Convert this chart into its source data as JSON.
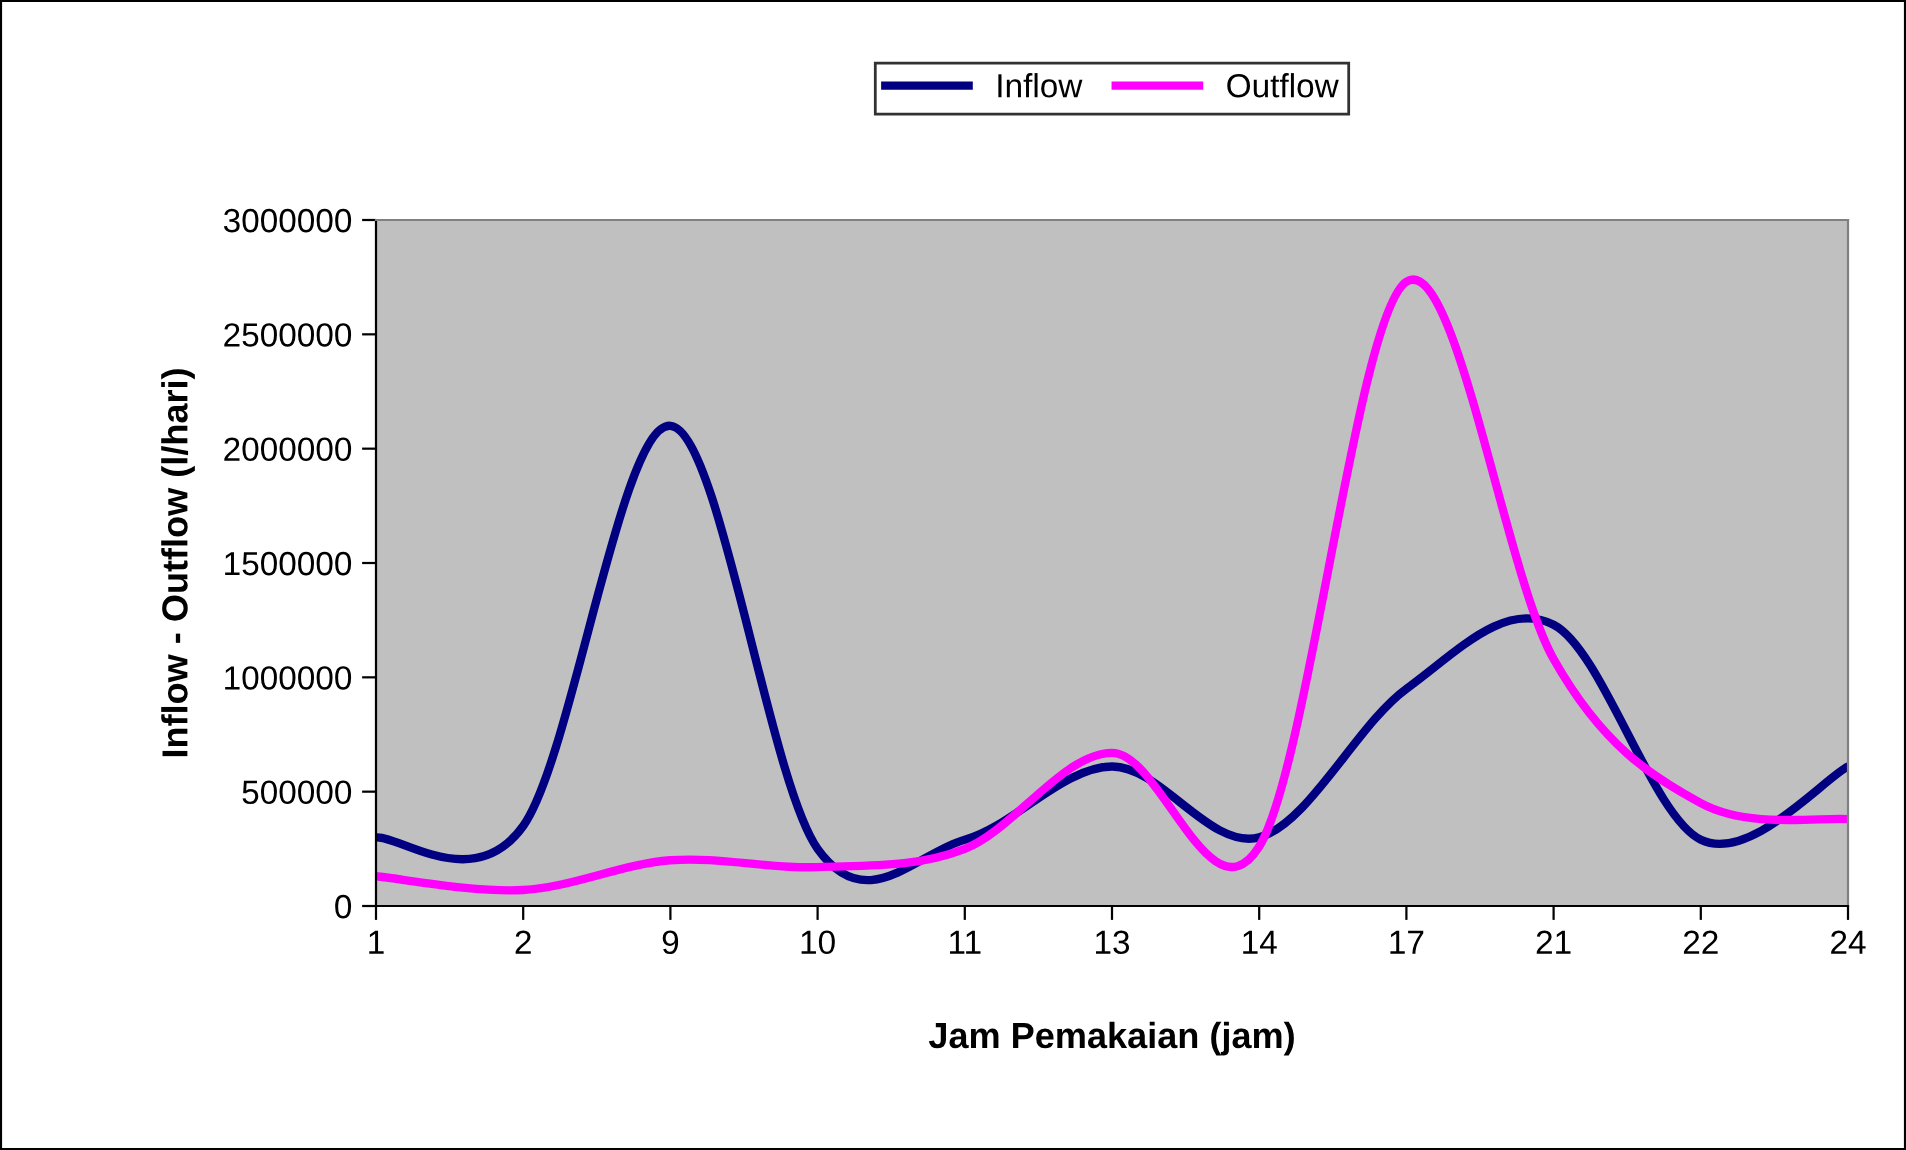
{
  "chart_data": {
    "type": "line",
    "xlabel": "Jam Pemakaian (jam)",
    "ylabel": "Inflow - Outflow (l/hari)",
    "categories": [
      "1",
      "2",
      "9",
      "10",
      "11",
      "13",
      "14",
      "17",
      "21",
      "22",
      "24"
    ],
    "series": [
      {
        "name": "Inflow",
        "color": "#000080",
        "values": [
          300000,
          350000,
          2100000,
          250000,
          290000,
          610000,
          300000,
          950000,
          1230000,
          290000,
          610000
        ]
      },
      {
        "name": "Outflow",
        "color": "#ff00ff",
        "values": [
          130000,
          70000,
          200000,
          170000,
          250000,
          670000,
          260000,
          2730000,
          1080000,
          450000,
          380000
        ]
      }
    ],
    "ylim": [
      0,
      3000000
    ],
    "yticks": [
      0,
      500000,
      1000000,
      1500000,
      2000000,
      2500000,
      3000000
    ],
    "grid": false,
    "legend": "top",
    "marker": "none",
    "line_style": "solid"
  }
}
